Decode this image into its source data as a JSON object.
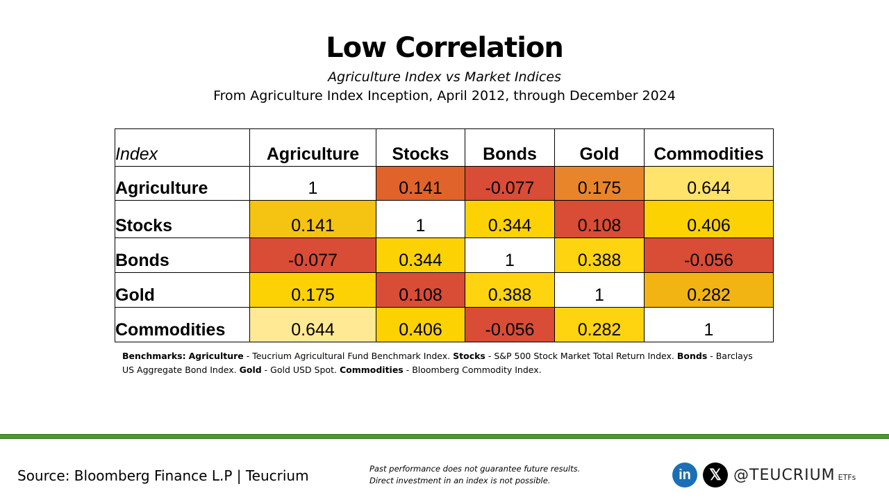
{
  "title": "Low Correlation",
  "subtitle": "Agriculture Index vs Market Indices",
  "subtitle2": "From Agriculture Index Inception, April 2012, through December 2024",
  "chart_data": {
    "type": "table",
    "corner_label": "Index",
    "columns": [
      "Agriculture",
      "Stocks",
      "Bonds",
      "Gold",
      "Commodities"
    ],
    "rows": [
      {
        "label": "Agriculture",
        "values": [
          "1",
          "0.141",
          "-0.077",
          "0.175",
          "0.644"
        ],
        "colors": [
          "#ffffff",
          "#e0632b",
          "#d94c35",
          "#e8852a",
          "#ffe36a"
        ]
      },
      {
        "label": "Stocks",
        "values": [
          "0.141",
          "1",
          "0.344",
          "0.108",
          "0.406"
        ],
        "colors": [
          "#f5c311",
          "#ffffff",
          "#fdd205",
          "#d94c35",
          "#fdd203"
        ]
      },
      {
        "label": "Bonds",
        "values": [
          "-0.077",
          "0.344",
          "1",
          "0.388",
          "-0.056"
        ],
        "colors": [
          "#d94c35",
          "#fdd205",
          "#ffffff",
          "#fdd40f",
          "#d94c35"
        ]
      },
      {
        "label": "Gold",
        "values": [
          "0.175",
          "0.108",
          "0.388",
          "1",
          "0.282"
        ],
        "colors": [
          "#fdd205",
          "#d94c35",
          "#fdd40f",
          "#ffffff",
          "#f2b413"
        ]
      },
      {
        "label": "Commodities",
        "values": [
          "0.644",
          "0.406",
          "-0.056",
          "0.282",
          "1"
        ],
        "colors": [
          "#ffe994",
          "#fdd203",
          "#d94c35",
          "#fdd40f",
          "#ffffff"
        ]
      }
    ]
  },
  "benchmarks": {
    "lead": "Benchmarks:",
    "items": [
      {
        "name": "Agriculture",
        "desc": " - Teucrium Agricultural Fund Benchmark Index. "
      },
      {
        "name": "Stocks",
        "desc": " - S&P 500 Stock Market Total Return Index. "
      },
      {
        "name": "Bonds",
        "desc": " - Barclays US Aggregate Bond Index. "
      },
      {
        "name": "Gold",
        "desc": " - Gold USD Spot. "
      },
      {
        "name": "Commodities",
        "desc": " - Bloomberg Commodity Index."
      }
    ]
  },
  "footer": {
    "source": "Source: Bloomberg Finance L.P | Teucrium",
    "disclaimer_line1": "Past performance does not guarantee future results.",
    "disclaimer_line2": "Direct investment in an index is not possible.",
    "linkedin_glyph": "in",
    "x_glyph": "𝕏",
    "handle": "@TEUCRIUM",
    "handle_suffix": "ETFs",
    "linkedin_color": "#1b6fb5",
    "accent_green": "#4a9a2c"
  }
}
